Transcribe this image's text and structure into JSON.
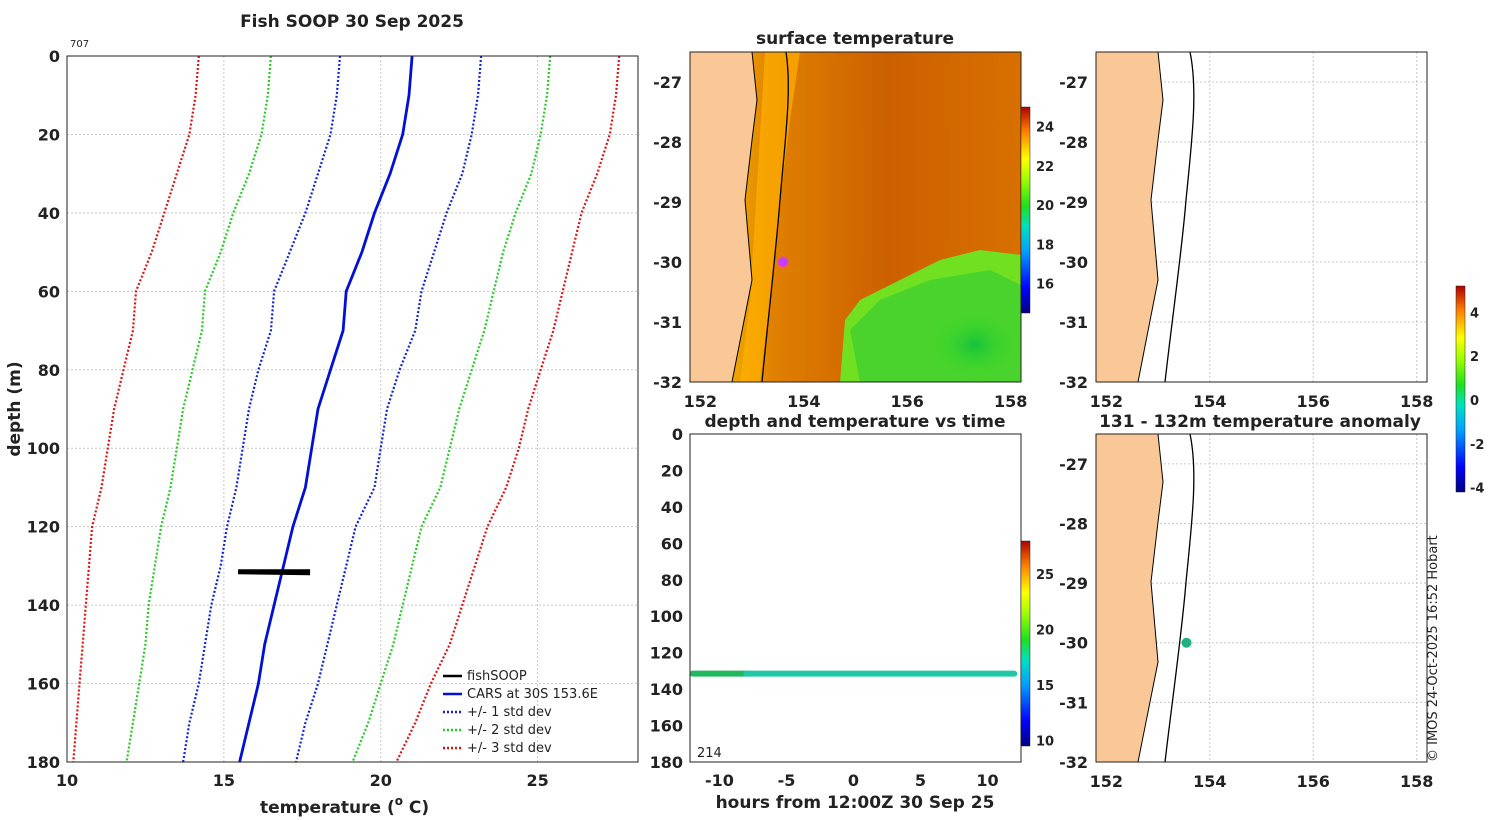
{
  "colors": {
    "land": "#f9c896",
    "coast": "#000",
    "fishsoop": "#000",
    "cars": "#0010d8",
    "std1": "#1020e0",
    "std2": "#22cc22",
    "std3": "#e01010",
    "dot_surface": "#c040ff",
    "dot_anom": "#20b080"
  },
  "chart_data": [
    {
      "id": "profile",
      "type": "line",
      "title": "Fish SOOP 30 Sep 2025",
      "corner_label": "707",
      "xlabel": "temperature (",
      "xlabel_sup": "o",
      "xlabel_end": " C)",
      "ylabel": "depth (m)",
      "xlim": [
        10,
        28.2
      ],
      "ylim": [
        0,
        180
      ],
      "y_reversed": true,
      "xticks": [
        10,
        15,
        20,
        25
      ],
      "yticks": [
        0,
        20,
        40,
        60,
        80,
        100,
        120,
        140,
        160,
        180
      ],
      "legend": [
        "fishSOOP",
        "CARS at 30S 153.6E",
        "+/- 1 std dev",
        "+/- 2 std dev",
        "+/- 3 std dev"
      ],
      "legend_position": "bottom-right",
      "depths": [
        0,
        10,
        20,
        30,
        40,
        50,
        60,
        70,
        80,
        90,
        100,
        110,
        120,
        130,
        140,
        150,
        160,
        170,
        180
      ],
      "cars": [
        21.0,
        20.9,
        20.7,
        20.3,
        19.8,
        19.4,
        18.9,
        18.8,
        18.4,
        18.0,
        17.8,
        17.6,
        17.2,
        16.9,
        16.6,
        16.3,
        16.1,
        15.8,
        15.5
      ],
      "plus1": [
        23.2,
        23.1,
        22.9,
        22.6,
        22.1,
        21.7,
        21.3,
        21.1,
        20.6,
        20.2,
        20.0,
        19.8,
        19.2,
        18.9,
        18.6,
        18.3,
        18.0,
        17.6,
        17.3
      ],
      "minus1": [
        18.7,
        18.6,
        18.4,
        18.0,
        17.6,
        17.1,
        16.6,
        16.5,
        16.1,
        15.8,
        15.6,
        15.4,
        15.1,
        14.9,
        14.6,
        14.4,
        14.2,
        13.9,
        13.7
      ],
      "plus2": [
        25.4,
        25.3,
        25.1,
        24.8,
        24.3,
        23.9,
        23.6,
        23.3,
        22.9,
        22.5,
        22.2,
        21.9,
        21.3,
        21.0,
        20.7,
        20.4,
        20.0,
        19.6,
        19.1
      ],
      "minus2": [
        16.5,
        16.4,
        16.2,
        15.8,
        15.3,
        14.9,
        14.4,
        14.3,
        14.0,
        13.7,
        13.5,
        13.3,
        13.0,
        12.8,
        12.6,
        12.5,
        12.3,
        12.1,
        11.9
      ],
      "plus3": [
        27.6,
        27.5,
        27.3,
        26.9,
        26.4,
        26.1,
        25.8,
        25.5,
        25.1,
        24.7,
        24.4,
        24.0,
        23.4,
        23.0,
        22.6,
        22.2,
        21.6,
        21.1,
        20.5
      ],
      "minus3": [
        14.2,
        14.1,
        13.9,
        13.5,
        13.1,
        12.7,
        12.2,
        12.1,
        11.8,
        11.5,
        11.3,
        11.1,
        10.8,
        10.7,
        10.6,
        10.5,
        10.4,
        10.3,
        10.2
      ],
      "fishsoop": {
        "temp_min": 15.5,
        "temp_max": 17.7,
        "depth_min": 131,
        "depth_max": 132
      }
    },
    {
      "id": "surface",
      "type": "heatmap",
      "title": "surface temperature",
      "xlim": [
        151.8,
        158.2
      ],
      "ylim": [
        -32,
        -26.5
      ],
      "xticks": [
        152,
        154,
        156,
        158
      ],
      "yticks": [
        -27,
        -28,
        -29,
        -30,
        -31,
        -32
      ],
      "colorbar": {
        "ticks": [
          24,
          22,
          20,
          18,
          16
        ],
        "range": [
          14.5,
          25
        ]
      },
      "vessel": {
        "lon": 153.6,
        "lat": -30
      }
    },
    {
      "id": "timeseries",
      "type": "scatter",
      "title": "depth and temperature vs time",
      "xlabel": "hours from 12:00Z 30 Sep 25",
      "corner_label": "214",
      "xlim": [
        -12.2,
        12.5
      ],
      "ylim": [
        0,
        180
      ],
      "y_reversed": true,
      "xticks": [
        -10,
        -5,
        0,
        5,
        10
      ],
      "yticks": [
        0,
        20,
        40,
        60,
        80,
        100,
        120,
        140,
        160,
        180
      ],
      "depth": 131.5,
      "colorbar": {
        "ticks": [
          25,
          20,
          15,
          10
        ],
        "range": [
          9.5,
          28
        ]
      }
    },
    {
      "id": "map_empty",
      "type": "scatter",
      "title": "",
      "xlim": [
        151.8,
        158.2
      ],
      "ylim": [
        -32,
        -26.5
      ],
      "xticks": [
        152,
        154,
        156,
        158
      ],
      "yticks": [
        -27,
        -28,
        -29,
        -30,
        -31,
        -32
      ]
    },
    {
      "id": "anomaly",
      "type": "scatter",
      "title": "131 - 132m temperature anomaly",
      "xlim": [
        151.8,
        158.2
      ],
      "ylim": [
        -32,
        -26.5
      ],
      "xticks": [
        152,
        154,
        156,
        158
      ],
      "yticks": [
        -27,
        -28,
        -29,
        -30,
        -31,
        -32
      ],
      "point": {
        "lon": 153.55,
        "lat": -30
      },
      "colorbar": {
        "ticks": [
          4,
          2,
          0,
          -2,
          -4
        ],
        "range": [
          -4.2,
          5.2
        ]
      }
    }
  ],
  "footer": {
    "credit": "© IMOS 24-Oct-2025 16:52 Hobart"
  }
}
